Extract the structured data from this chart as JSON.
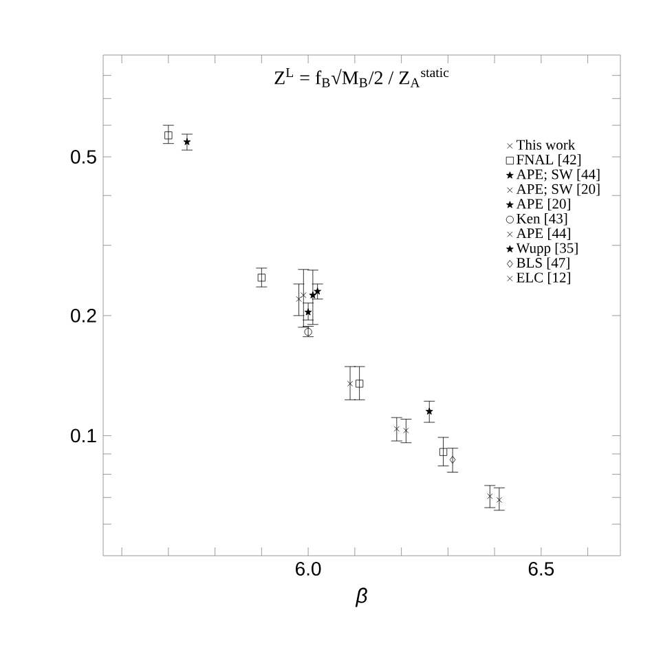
{
  "chart_data": {
    "type": "scatter",
    "title": "Z$^{L}$ = f$_{B}$√M$_{B}$/2  /  Z$_{A}$$^{static}$",
    "xlabel": "β",
    "log": "y",
    "xlim": [
      5.56,
      6.67
    ],
    "ylim": [
      0.05,
      0.9
    ],
    "xticks": [
      {
        "value": 5.6,
        "label": null
      },
      {
        "value": 5.7,
        "label": null
      },
      {
        "value": 5.8,
        "label": null
      },
      {
        "value": 5.9,
        "label": null
      },
      {
        "value": 6.0,
        "label": "6.0"
      },
      {
        "value": 6.1,
        "label": null
      },
      {
        "value": 6.2,
        "label": null
      },
      {
        "value": 6.3,
        "label": null
      },
      {
        "value": 6.4,
        "label": null
      },
      {
        "value": 6.5,
        "label": "6.5"
      },
      {
        "value": 6.6,
        "label": null
      }
    ],
    "yticks": [
      {
        "value": 0.06,
        "label": null
      },
      {
        "value": 0.07,
        "label": null
      },
      {
        "value": 0.08,
        "label": null
      },
      {
        "value": 0.09,
        "label": null
      },
      0.1,
      0.2,
      {
        "value": 0.3,
        "label": null
      },
      {
        "value": 0.4,
        "label": null
      },
      0.5,
      {
        "value": 0.6,
        "label": null
      },
      {
        "value": 0.7,
        "label": null
      },
      {
        "value": 0.8,
        "label": null
      }
    ],
    "legend": "top right",
    "grid": false,
    "series": [
      {
        "name": "This work",
        "color": "#000000",
        "marker": "cross",
        "x": [
          5.98
        ],
        "values": [
          0.22
        ],
        "errors": [
          [
            0.2,
            0.24
          ]
        ]
      },
      {
        "name": "FNAL [42]",
        "color": "#000000",
        "marker": "square",
        "x": [
          5.7,
          5.9,
          6.11,
          6.29
        ],
        "values": [
          0.566,
          0.249,
          0.135,
          0.091
        ],
        "errors": [
          [
            0.54,
            0.6
          ],
          [
            0.236,
            0.263
          ],
          [
            0.123,
            0.149
          ],
          [
            0.084,
            0.099
          ]
        ]
      },
      {
        "name": "APE; SW [44]",
        "color": "#000000",
        "marker": "star",
        "x": [
          6.0
        ],
        "values": [
          0.204
        ],
        "errors": [
          [
            0.195,
            0.215
          ]
        ]
      },
      {
        "name": "APE; SW [20]",
        "color": "#000000",
        "marker": "cross",
        "x": [
          5.99
        ],
        "values": [
          0.225
        ],
        "errors": [
          [
            0.187,
            0.261
          ]
        ]
      },
      {
        "name": "APE [20]",
        "color": "#000000",
        "marker": "star",
        "x": [
          6.01
        ],
        "values": [
          0.225
        ],
        "errors": [
          [
            0.19,
            0.26
          ]
        ]
      },
      {
        "name": "Ken [43]",
        "color": "#000000",
        "marker": "circle",
        "x": [
          6.0
        ],
        "values": [
          0.182
        ],
        "errors": [
          [
            0.177,
            0.188
          ]
        ]
      },
      {
        "name": "APE [44]",
        "color": "#000000",
        "marker": "cross",
        "x": [
          6.09,
          6.19,
          6.39
        ],
        "values": [
          0.135,
          0.104,
          0.0705
        ],
        "errors": [
          [
            0.123,
            0.149
          ],
          [
            0.097,
            0.111
          ],
          [
            0.066,
            0.075
          ]
        ]
      },
      {
        "name": "Wupp [35]",
        "color": "#000000",
        "marker": "star",
        "x": [
          5.74,
          6.02,
          6.26
        ],
        "values": [
          0.545,
          0.23,
          0.115
        ],
        "errors": [
          [
            0.52,
            0.57
          ],
          [
            0.22,
            0.24
          ],
          [
            0.108,
            0.122
          ]
        ]
      },
      {
        "name": "BLS [47]",
        "color": "#000000",
        "marker": "diamond",
        "x": [
          6.31
        ],
        "values": [
          0.087
        ],
        "errors": [
          [
            0.081,
            0.093
          ]
        ]
      },
      {
        "name": "ELC [12]",
        "color": "#000000",
        "marker": "cross",
        "x": [
          6.21,
          6.41
        ],
        "values": [
          0.103,
          0.069
        ],
        "errors": [
          [
            0.096,
            0.11
          ],
          [
            0.065,
            0.074
          ]
        ]
      }
    ]
  }
}
